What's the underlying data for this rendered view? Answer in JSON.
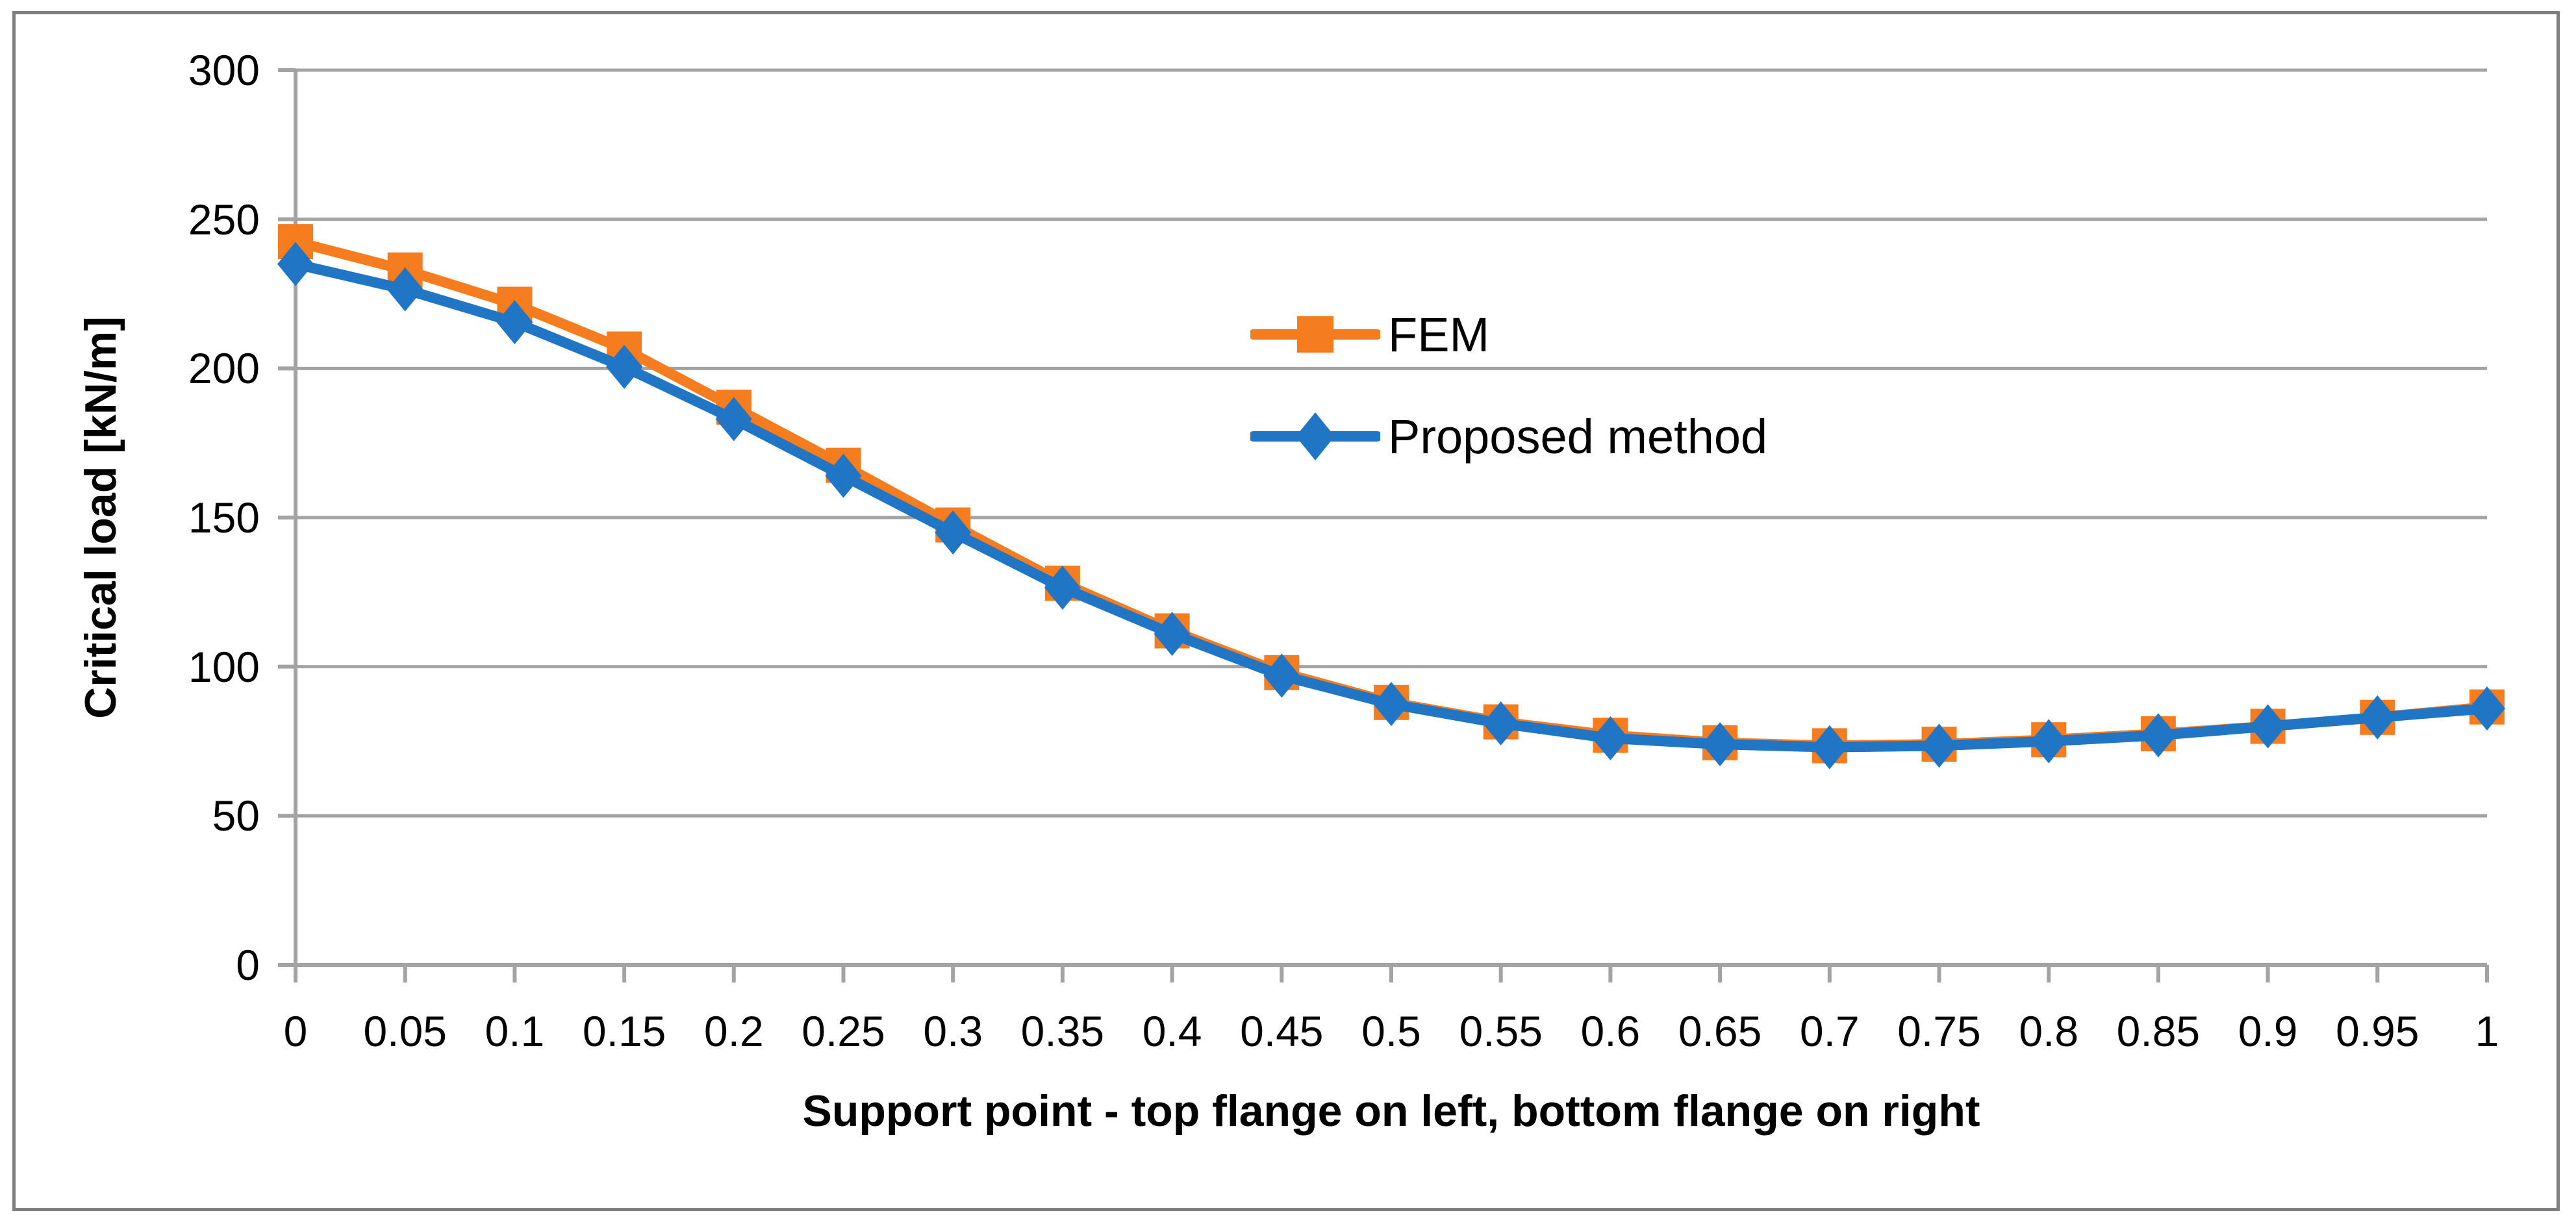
{
  "figure": {
    "y_axis_title": "Critical load [kN/m]",
    "x_axis_title": "Support point - top flange on left, bottom flange on right",
    "legend": [
      {
        "label": "FEM",
        "marker": "square",
        "color": "#F57D20"
      },
      {
        "label": "Proposed method",
        "marker": "diamond",
        "color": "#2075C5"
      }
    ]
  },
  "chart_data": {
    "type": "line",
    "title": "",
    "xlabel": "Support point - top flange on left, bottom flange on right",
    "ylabel": "Critical load [kN/m]",
    "x": [
      0,
      0.05,
      0.1,
      0.15,
      0.2,
      0.25,
      0.3,
      0.35,
      0.4,
      0.45,
      0.5,
      0.55,
      0.6,
      0.65,
      0.7,
      0.75,
      0.8,
      0.85,
      0.9,
      0.95,
      1
    ],
    "x_tick_labels": [
      "0",
      "0.05",
      "0.1",
      "0.15",
      "0.2",
      "0.25",
      "0.3",
      "0.35",
      "0.4",
      "0.45",
      "0.5",
      "0.55",
      "0.6",
      "0.65",
      "0.7",
      "0.75",
      "0.8",
      "0.85",
      "0.9",
      "0.95",
      "1"
    ],
    "y_tick_labels": [
      "0",
      "50",
      "100",
      "150",
      "200",
      "250",
      "300"
    ],
    "ylim": [
      0,
      300
    ],
    "y_tick_step": 50,
    "grid": "horizontal",
    "legend_position": "inside-upper-middle",
    "series": [
      {
        "name": "FEM",
        "marker": "square",
        "color": "#F57D20",
        "values": [
          242.5,
          233,
          221.5,
          206.5,
          187,
          167.5,
          147.5,
          128,
          112,
          98,
          88,
          81.5,
          77,
          74.5,
          73.5,
          74,
          75.5,
          77.5,
          80,
          83,
          86.5
        ]
      },
      {
        "name": "Proposed method",
        "marker": "diamond",
        "color": "#2075C5",
        "values": [
          235,
          226.5,
          215.5,
          200.5,
          183,
          164,
          145,
          126.5,
          111,
          97,
          87.5,
          81,
          76,
          74,
          73,
          73.5,
          75,
          77,
          80,
          83,
          86
        ]
      }
    ],
    "colors": {
      "gridline": "#A3A3A3",
      "axis": "#A3A3A3",
      "frame_border": "#7F7F7F",
      "text": "#000000"
    }
  }
}
